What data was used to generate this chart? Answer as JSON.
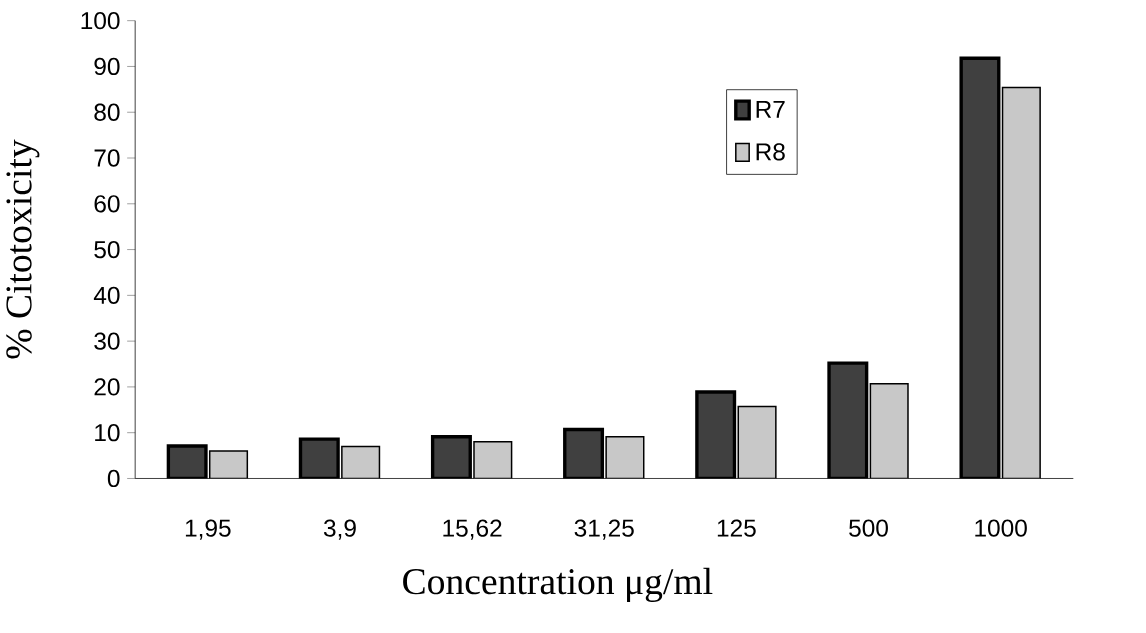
{
  "chart_data": {
    "type": "bar",
    "xlabel": "Concentration μg/ml",
    "ylabel": "% Citotoxicity",
    "categories": [
      "1,95",
      "3,9",
      "15,62",
      "31,25",
      "125",
      "500",
      "1000"
    ],
    "series": [
      {
        "name": "R7",
        "color": "#404040",
        "values": [
          7.1,
          8.6,
          9.1,
          10.7,
          18.9,
          25.2,
          91.8
        ]
      },
      {
        "name": "R8",
        "color": "#c8c8c8",
        "values": [
          6.0,
          7.0,
          8.0,
          9.1,
          15.7,
          20.7,
          85.4
        ]
      }
    ],
    "ylim": [
      0,
      100
    ],
    "yticks": [
      0,
      10,
      20,
      30,
      40,
      50,
      60,
      70,
      80,
      90,
      100
    ],
    "grid": false,
    "legend": "top right"
  }
}
